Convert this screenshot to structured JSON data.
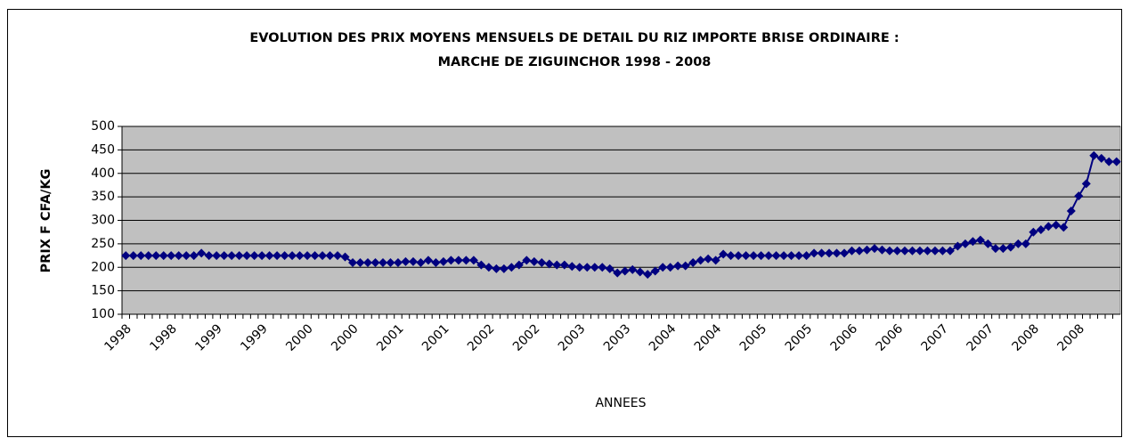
{
  "chart_data": {
    "type": "line",
    "title": [
      "EVOLUTION DES PRIX MOYENS MENSUELS DE DETAIL DU RIZ IMPORTE BRISE ORDINAIRE :",
      "MARCHE DE ZIGUINCHOR 1998 - 2008"
    ],
    "y_label": "PRIX F CFA/KG",
    "x_label": "ANNEES",
    "categories": [
      "1998",
      null,
      null,
      null,
      null,
      null,
      "1998",
      null,
      null,
      null,
      null,
      null,
      "1999",
      null,
      null,
      null,
      null,
      null,
      "1999",
      null,
      null,
      null,
      null,
      null,
      "2000",
      null,
      null,
      null,
      null,
      null,
      "2000",
      null,
      null,
      null,
      null,
      null,
      "2001",
      null,
      null,
      null,
      null,
      null,
      "2001",
      null,
      null,
      null,
      null,
      null,
      "2002",
      null,
      null,
      null,
      null,
      null,
      "2002",
      null,
      null,
      null,
      null,
      null,
      "2003",
      null,
      null,
      null,
      null,
      null,
      "2003",
      null,
      null,
      null,
      null,
      null,
      "2004",
      null,
      null,
      null,
      null,
      null,
      "2004",
      null,
      null,
      null,
      null,
      null,
      "2005",
      null,
      null,
      null,
      null,
      null,
      "2005",
      null,
      null,
      null,
      null,
      null,
      "2006",
      null,
      null,
      null,
      null,
      null,
      "2006",
      null,
      null,
      null,
      null,
      null,
      "2007",
      null,
      null,
      null,
      null,
      null,
      "2007",
      null,
      null,
      null,
      null,
      null,
      "2008",
      null,
      null,
      null,
      null,
      null,
      "2008",
      null,
      null,
      null,
      null,
      null
    ],
    "series": [
      {
        "color": "#000080",
        "values": [
          225,
          225,
          225,
          225,
          225,
          225,
          225,
          225,
          225,
          225,
          230,
          225,
          225,
          225,
          225,
          225,
          225,
          225,
          225,
          225,
          225,
          225,
          225,
          225,
          225,
          225,
          225,
          225,
          225,
          222,
          210,
          210,
          210,
          210,
          210,
          210,
          210,
          212,
          212,
          210,
          215,
          210,
          212,
          215,
          215,
          215,
          215,
          205,
          200,
          197,
          197,
          200,
          205,
          215,
          212,
          210,
          207,
          205,
          205,
          202,
          200,
          200,
          200,
          200,
          197,
          188,
          192,
          195,
          190,
          185,
          192,
          200,
          200,
          203,
          203,
          210,
          215,
          218,
          215,
          228,
          225,
          225,
          225,
          225,
          225,
          225,
          225,
          225,
          225,
          225,
          225,
          230,
          230,
          230,
          230,
          230,
          235,
          235,
          237,
          240,
          237,
          235,
          235,
          235,
          235,
          235,
          235,
          235,
          235,
          235,
          245,
          250,
          255,
          258,
          250,
          240,
          240,
          243,
          250,
          250,
          275,
          280,
          287,
          290,
          285,
          320,
          352,
          378,
          438,
          432,
          425,
          425
        ]
      }
    ],
    "ylim": [
      100,
      500
    ],
    "yticks": [
      100,
      150,
      200,
      250,
      300,
      350,
      400,
      450,
      500
    ],
    "grid": true,
    "plot_background": "#c0c0c0"
  }
}
